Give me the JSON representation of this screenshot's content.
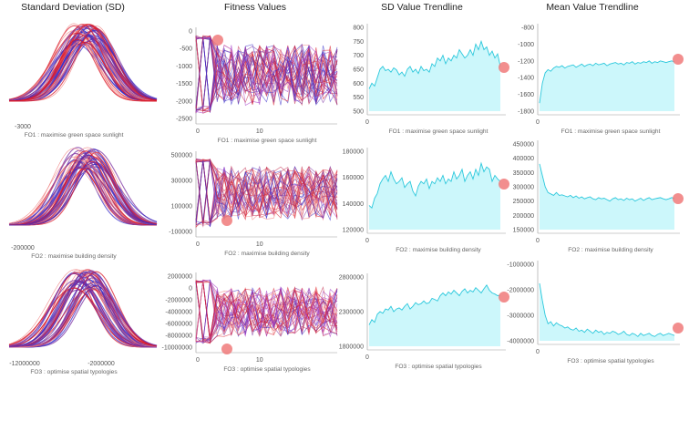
{
  "headers": [
    "Standard Deviation (SD)",
    "Fitness Values",
    "SD Value Trendline",
    "Mean Value Trendline"
  ],
  "objectives": [
    "FO1 : maximise green space sunlight",
    "FO2 : maximise building density",
    "FO3 : optimise spatial typologies"
  ],
  "colors": {
    "red": "#d91a2a",
    "blue": "#3a2fc9",
    "purple": "#7a2fa0",
    "pink": "#f08080",
    "cyan_fill": "#ccf7fb",
    "cyan_line": "#2cc8dc",
    "marker": "#f07a7a"
  },
  "chart_data": [
    {
      "panel": "sd-fo1",
      "type": "line",
      "subtype": "distribution curves",
      "xticks": [
        "-3000"
      ],
      "xlabel": "FO1 : maximise green space sunlight"
    },
    {
      "panel": "sd-fo2",
      "type": "line",
      "subtype": "distribution curves",
      "xticks": [
        "-200000"
      ],
      "xlabel": "FO2 : maximise building density"
    },
    {
      "panel": "sd-fo3",
      "type": "line",
      "subtype": "distribution curves",
      "xticks": [
        "-12000000",
        "-2000000"
      ],
      "xlabel": "FO3 : optimise spatial typologies"
    },
    {
      "panel": "fit-fo1",
      "type": "line",
      "subtype": "parallel fitness lines",
      "yticks": [
        "0",
        "-500",
        "-1000",
        "-1500",
        "-2000",
        "-2500"
      ],
      "ylim": [
        -2500,
        100
      ],
      "xticks": [
        "0",
        "10"
      ],
      "xlim": [
        0,
        20
      ],
      "xlabel": "FO1 : maximise green space sunlight"
    },
    {
      "panel": "fit-fo2",
      "type": "line",
      "subtype": "parallel fitness lines",
      "yticks": [
        "500000",
        "300000",
        "100000",
        "-100000"
      ],
      "ylim": [
        -100000,
        500000
      ],
      "xticks": [
        "0",
        "10"
      ],
      "xlim": [
        0,
        20
      ],
      "xlabel": "FO2 : maximise building density"
    },
    {
      "panel": "fit-fo3",
      "type": "line",
      "subtype": "parallel fitness lines",
      "yticks": [
        "2000000",
        "0",
        "-2000000",
        "-4000000",
        "-6000000",
        "-8000000",
        "-10000000"
      ],
      "ylim": [
        -10000000,
        2000000
      ],
      "xticks": [
        "0",
        "10"
      ],
      "xlim": [
        0,
        20
      ],
      "xlabel": "FO3 : optimise spatial typologies"
    },
    {
      "panel": "sdt-fo1",
      "type": "area",
      "yticks": [
        "800",
        "750",
        "700",
        "650",
        "600",
        "550",
        "500"
      ],
      "ylim": [
        500,
        800
      ],
      "xticks": [
        "0"
      ],
      "xlabel": "FO1 : maximise green space sunlight",
      "values": [
        580,
        600,
        590,
        620,
        650,
        660,
        645,
        650,
        640,
        655,
        648,
        630,
        640,
        625,
        650,
        660,
        640,
        650,
        635,
        660,
        645,
        650,
        640,
        670,
        660,
        690,
        680,
        700,
        670,
        690,
        680,
        700,
        690,
        720,
        705,
        690,
        700,
        720,
        700,
        740,
        720,
        750,
        720,
        730,
        700,
        715,
        690,
        705,
        660
      ]
    },
    {
      "panel": "sdt-fo2",
      "type": "area",
      "yticks": [
        "180000",
        "160000",
        "140000",
        "120000"
      ],
      "ylim": [
        120000,
        185000
      ],
      "xticks": [
        "0"
      ],
      "xlabel": "FO2 : maximise building density",
      "values": [
        140000,
        138000,
        146000,
        150000,
        158000,
        162000,
        165000,
        160000,
        168000,
        162000,
        158000,
        160000,
        163000,
        155000,
        158000,
        160000,
        152000,
        148000,
        156000,
        160000,
        158000,
        162000,
        154000,
        160000,
        158000,
        163000,
        160000,
        165000,
        158000,
        162000,
        160000,
        168000,
        162000,
        165000,
        170000,
        160000,
        165000,
        168000,
        162000,
        170000,
        165000,
        175000,
        168000,
        172000,
        170000,
        160000,
        165000,
        162000,
        160000
      ]
    },
    {
      "panel": "sdt-fo3",
      "type": "area",
      "yticks": [
        "2800000",
        "2300000",
        "1800000"
      ],
      "ylim": [
        1800000,
        3100000
      ],
      "xticks": [
        "0"
      ],
      "xlabel": "FO3 : optimise spatial typologies",
      "values": [
        2200000,
        2300000,
        2250000,
        2400000,
        2450000,
        2420000,
        2500000,
        2480000,
        2550000,
        2450000,
        2500000,
        2520000,
        2480000,
        2550000,
        2600000,
        2500000,
        2550000,
        2620000,
        2580000,
        2600000,
        2650000,
        2600000,
        2620000,
        2700000,
        2680000,
        2650000,
        2750000,
        2800000,
        2750000,
        2820000,
        2780000,
        2850000,
        2800000,
        2750000,
        2830000,
        2880000,
        2800000,
        2850000,
        2820000,
        2900000,
        2850000,
        2800000,
        2880000,
        2950000,
        2850000,
        2800000,
        2780000,
        2750000,
        2760000
      ]
    },
    {
      "panel": "mt-fo1",
      "type": "area",
      "yticks": [
        "-800",
        "-1000",
        "-1200",
        "-1400",
        "-1600",
        "-1800"
      ],
      "ylim": [
        -1800,
        -750
      ],
      "xticks": [
        "0"
      ],
      "xlabel": "FO1 : maximise green space sunlight",
      "values": [
        -1700,
        -1450,
        -1320,
        -1280,
        -1300,
        -1260,
        -1240,
        -1250,
        -1230,
        -1260,
        -1240,
        -1230,
        -1220,
        -1250,
        -1230,
        -1210,
        -1240,
        -1220,
        -1210,
        -1230,
        -1200,
        -1220,
        -1210,
        -1200,
        -1230,
        -1210,
        -1200,
        -1190,
        -1210,
        -1200,
        -1220,
        -1190,
        -1200,
        -1180,
        -1210,
        -1190,
        -1200,
        -1180,
        -1190,
        -1170,
        -1200,
        -1180,
        -1190,
        -1170,
        -1180,
        -1190,
        -1180,
        -1170,
        -1180
      ]
    },
    {
      "panel": "mt-fo2",
      "type": "area",
      "yticks": [
        "450000",
        "400000",
        "350000",
        "300000",
        "250000",
        "200000",
        "150000"
      ],
      "ylim": [
        150000,
        450000
      ],
      "xticks": [
        "0"
      ],
      "xlabel": "FO2 : maximise building density",
      "values": [
        380000,
        340000,
        300000,
        280000,
        275000,
        270000,
        280000,
        270000,
        272000,
        268000,
        265000,
        270000,
        262000,
        268000,
        260000,
        265000,
        258000,
        262000,
        265000,
        258000,
        255000,
        262000,
        258000,
        260000,
        255000,
        250000,
        258000,
        262000,
        255000,
        258000,
        252000,
        260000,
        255000,
        258000,
        250000,
        255000,
        260000,
        252000,
        258000,
        262000,
        255000,
        258000,
        260000,
        262000,
        258000,
        255000,
        258000,
        262000,
        260000
      ]
    },
    {
      "panel": "mt-fo3",
      "type": "area",
      "yticks": [
        "-1000000",
        "-2000000",
        "-3000000",
        "-4000000"
      ],
      "ylim": [
        -4200000,
        -600000
      ],
      "xticks": [
        "0"
      ],
      "xlabel": "FO3 : optimise spatial typologies",
      "values": [
        -1500000,
        -2300000,
        -3000000,
        -3400000,
        -3300000,
        -3500000,
        -3350000,
        -3450000,
        -3500000,
        -3600000,
        -3550000,
        -3650000,
        -3700000,
        -3600000,
        -3750000,
        -3700000,
        -3800000,
        -3650000,
        -3750000,
        -3850000,
        -3700000,
        -3800000,
        -3750000,
        -3900000,
        -3800000,
        -3850000,
        -3750000,
        -3800000,
        -3900000,
        -3850000,
        -3750000,
        -3900000,
        -3950000,
        -3850000,
        -3900000,
        -4000000,
        -3850000,
        -3950000,
        -3900000,
        -3850000,
        -3950000,
        -4000000,
        -3900000,
        -3850000,
        -3950000,
        -3900000,
        -3850000,
        -3900000,
        -3950000
      ]
    }
  ]
}
